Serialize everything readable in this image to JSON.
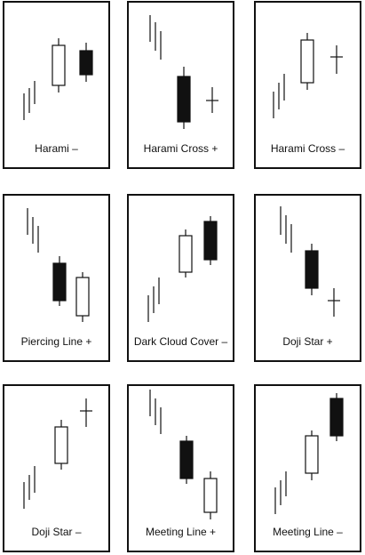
{
  "colors": {
    "line": "#111111",
    "hollow_fill": "#ffffff",
    "filled_fill": "#111111"
  },
  "panels": [
    {
      "label": "Harami –",
      "pattern": "bullish-trend-then-inside-filled-body"
    },
    {
      "label": "Harami Cross +",
      "pattern": "bearish-trend-then-doji-cross"
    },
    {
      "label": "Harami Cross –",
      "pattern": "bullish-trend-then-doji-cross"
    },
    {
      "label": "Piercing Line +",
      "pattern": "bearish-trend-filled-then-hollow"
    },
    {
      "label": "Dark Cloud Cover –",
      "pattern": "bullish-trend-hollow-then-filled"
    },
    {
      "label": "Doji Star +",
      "pattern": "bearish-trend-filled-then-doji"
    },
    {
      "label": "Doji Star  –",
      "pattern": "bullish-trend-hollow-then-doji"
    },
    {
      "label": "Meeting Line +",
      "pattern": "bearish-trend-filled-then-hollow"
    },
    {
      "label": "Meeting Line  –",
      "pattern": "bullish-trend-hollow-then-filled"
    }
  ]
}
